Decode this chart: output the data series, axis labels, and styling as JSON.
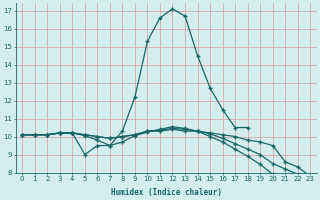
{
  "xlabel": "Humidex (Indice chaleur)",
  "bg_color": "#d4eeee",
  "grid_color": "#d8a8a8",
  "line_color": "#1a6666",
  "marker": "+",
  "xlim": [
    -0.5,
    23.5
  ],
  "ylim": [
    8,
    17.4
  ],
  "xticks": [
    0,
    1,
    2,
    3,
    4,
    5,
    6,
    7,
    8,
    9,
    10,
    11,
    12,
    13,
    14,
    15,
    16,
    17,
    18,
    19,
    20,
    21,
    22,
    23
  ],
  "yticks": [
    8,
    9,
    10,
    11,
    12,
    13,
    14,
    15,
    16,
    17
  ],
  "line1_x": [
    0,
    1,
    2,
    3,
    4,
    5,
    6,
    7,
    8,
    9,
    10,
    11,
    12,
    13,
    14,
    15,
    16,
    17,
    18
  ],
  "line1_y": [
    10.1,
    10.1,
    10.1,
    10.2,
    10.2,
    9.0,
    9.5,
    9.5,
    10.3,
    12.2,
    15.3,
    16.6,
    17.1,
    16.7,
    14.5,
    12.7,
    11.5,
    10.5,
    10.5
  ],
  "line2_x": [
    0,
    1,
    2,
    3,
    4,
    5,
    6,
    7,
    8,
    9,
    10,
    11,
    12,
    13,
    14,
    15,
    16,
    17,
    18,
    19,
    20,
    21,
    22,
    23
  ],
  "line2_y": [
    10.1,
    10.1,
    10.1,
    10.2,
    10.2,
    10.1,
    10.0,
    9.9,
    10.0,
    10.1,
    10.3,
    10.3,
    10.4,
    10.3,
    10.3,
    10.2,
    10.1,
    10.0,
    9.8,
    9.7,
    9.5,
    8.6,
    8.3,
    7.8
  ],
  "line3_x": [
    0,
    1,
    2,
    3,
    4,
    5,
    6,
    7,
    8,
    9,
    10,
    11,
    12,
    13,
    14,
    15,
    16,
    17,
    18,
    19,
    20,
    21,
    22,
    23
  ],
  "line3_y": [
    10.1,
    10.1,
    10.1,
    10.2,
    10.2,
    10.1,
    10.0,
    9.9,
    10.0,
    10.1,
    10.3,
    10.35,
    10.45,
    10.4,
    10.3,
    10.15,
    9.9,
    9.6,
    9.3,
    9.0,
    8.5,
    8.2,
    7.9,
    7.6
  ],
  "line4_x": [
    0,
    1,
    2,
    3,
    4,
    5,
    6,
    7,
    8,
    9,
    10,
    11,
    12,
    13,
    14,
    15,
    16,
    17,
    18,
    19,
    20,
    21,
    22,
    23
  ],
  "line4_y": [
    10.1,
    10.1,
    10.1,
    10.2,
    10.2,
    10.05,
    9.8,
    9.5,
    9.7,
    10.05,
    10.25,
    10.4,
    10.55,
    10.45,
    10.3,
    10.0,
    9.7,
    9.3,
    8.9,
    8.45,
    7.9,
    7.5,
    7.2,
    6.9
  ]
}
